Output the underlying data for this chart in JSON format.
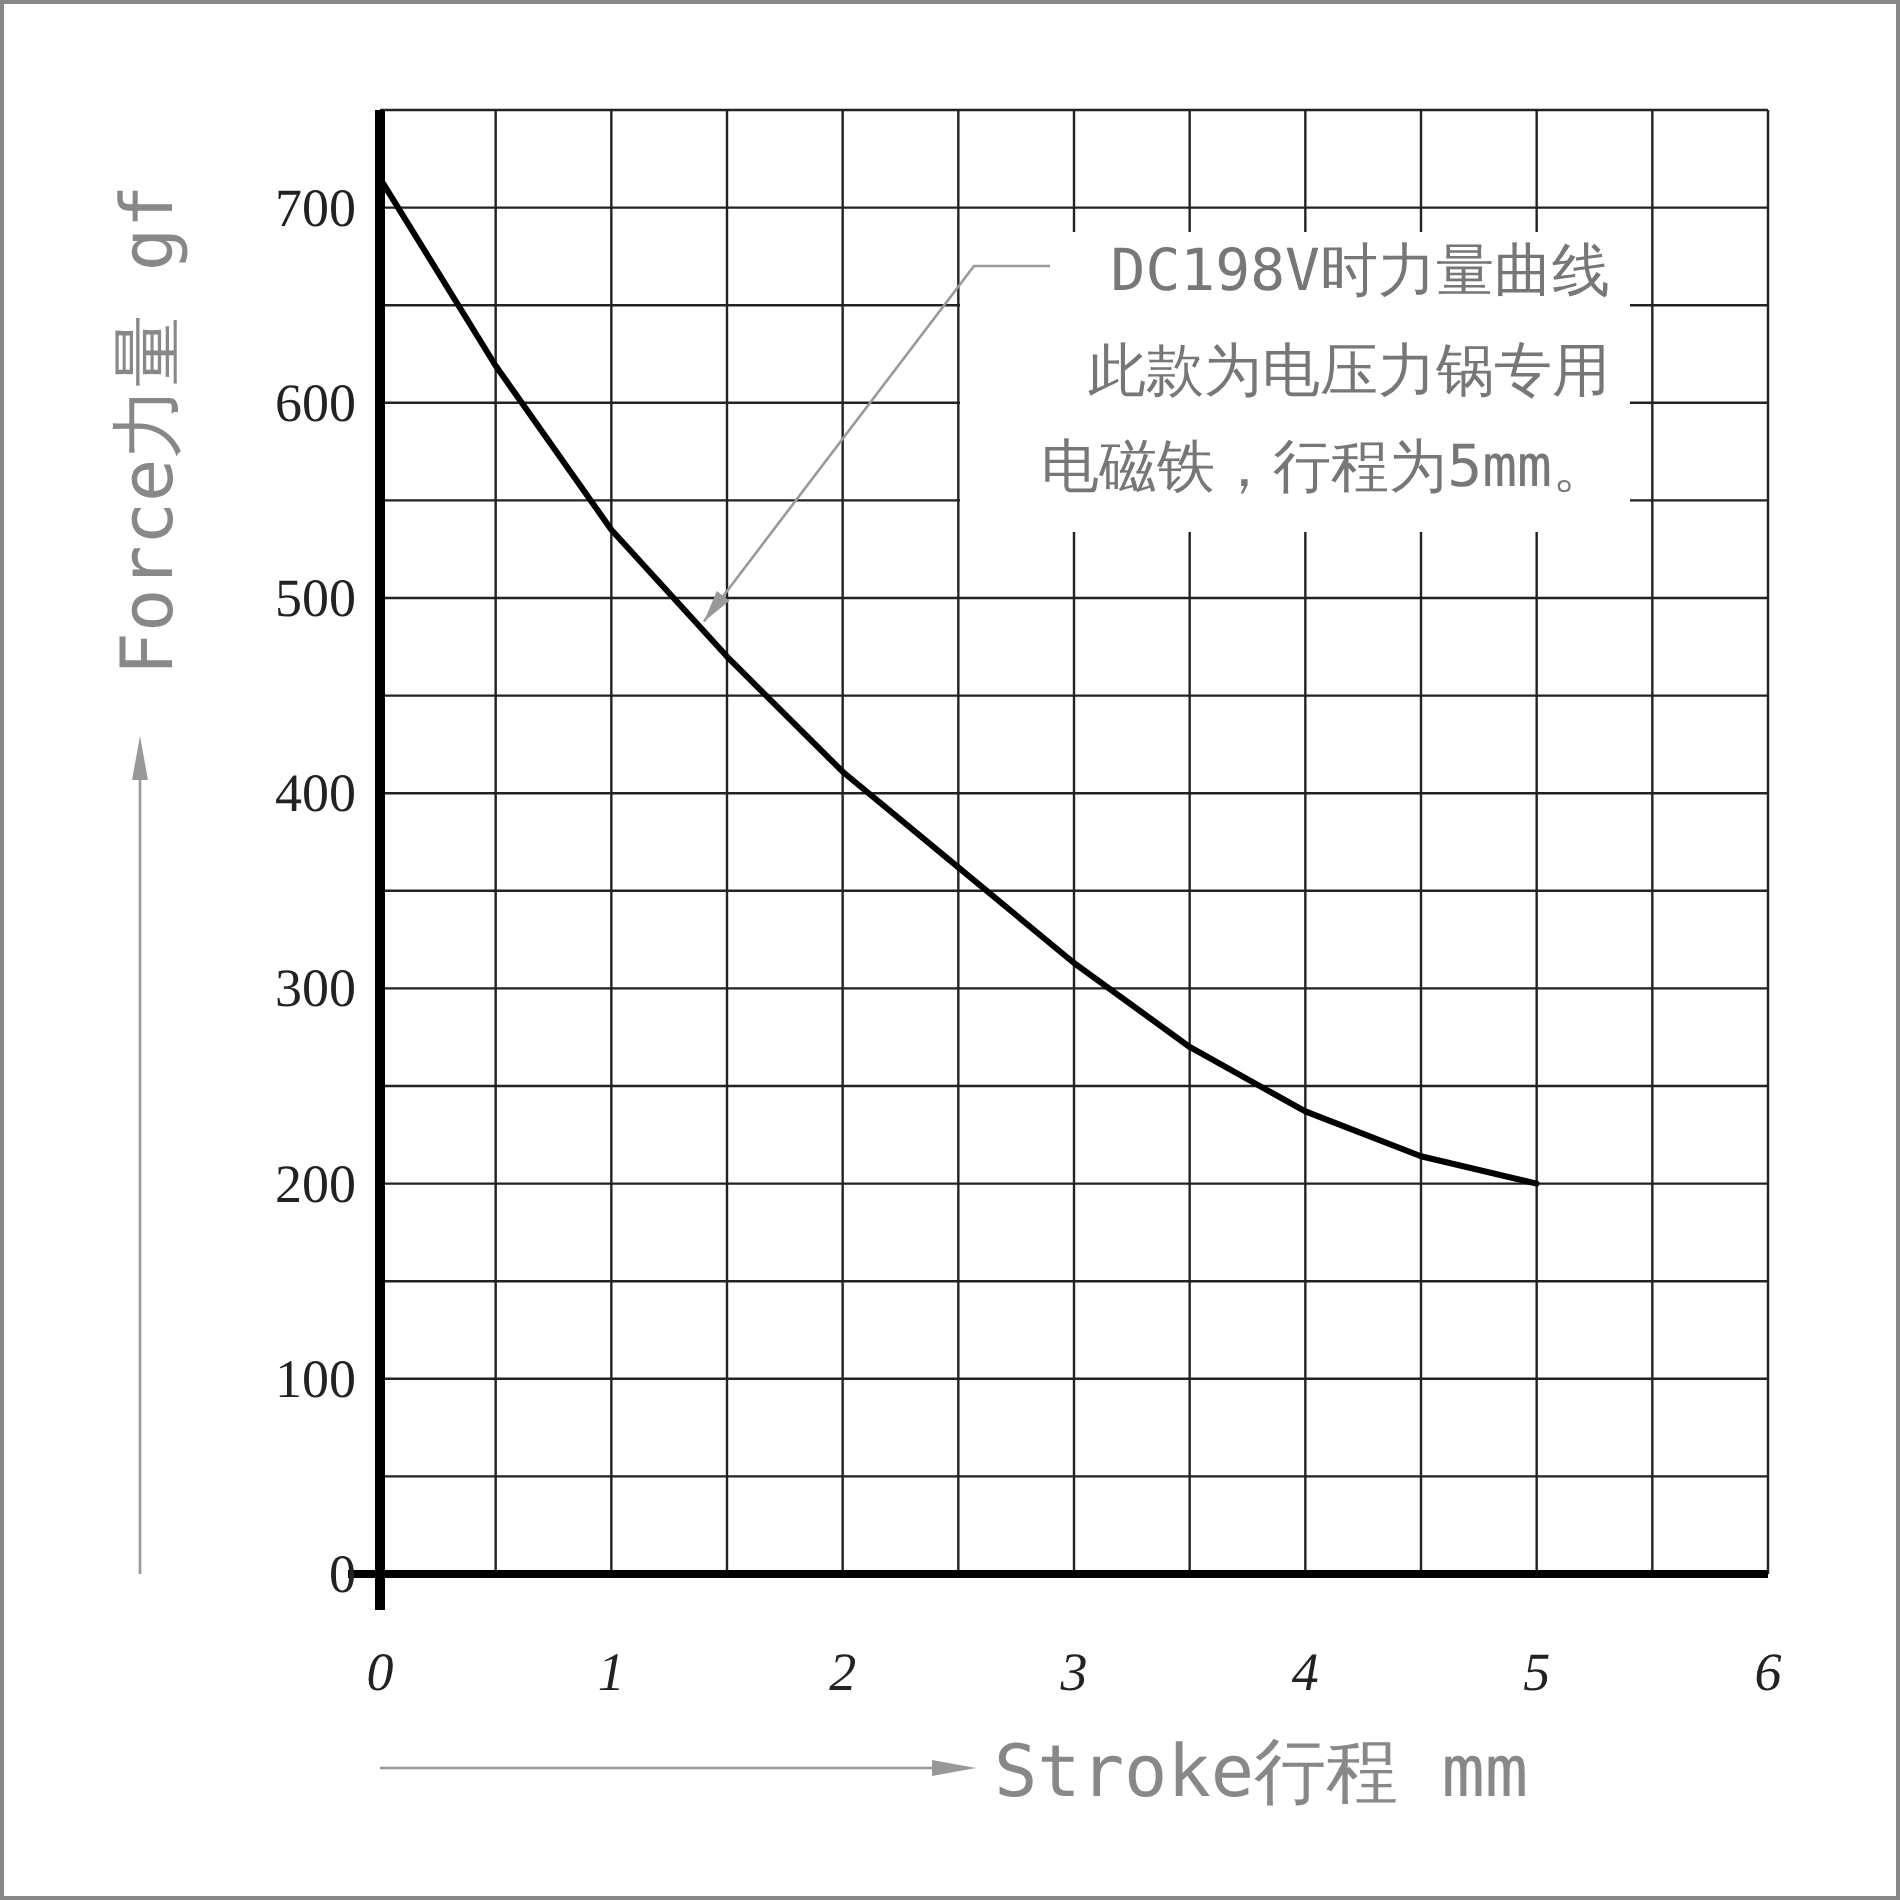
{
  "chart_data": {
    "type": "line",
    "xlabel": "Stroke行程 mm",
    "ylabel": "Force力量 gf",
    "x": [
      0,
      0.5,
      1,
      1.5,
      2,
      2.5,
      3,
      3.5,
      4,
      4.5,
      5
    ],
    "series": [
      {
        "color": "#000000",
        "values": [
          715,
          619,
          535,
          470,
          411,
          362,
          313,
          270,
          237,
          214,
          200
        ]
      }
    ],
    "xlim": [
      0,
      6
    ],
    "ylim": [
      0,
      750
    ],
    "xticks": [
      0,
      {
        "value": 0.5,
        "label": null
      },
      1,
      {
        "value": 1.5,
        "label": null
      },
      2,
      {
        "value": 2.5,
        "label": null
      },
      3,
      {
        "value": 3.5,
        "label": null
      },
      4,
      {
        "value": 4.5,
        "label": null
      },
      5,
      {
        "value": 5.5,
        "label": null
      },
      6
    ],
    "yticks": [
      0,
      {
        "value": 50,
        "label": null
      },
      100,
      {
        "value": 150,
        "label": null
      },
      200,
      {
        "value": 250,
        "label": null
      },
      300,
      {
        "value": 350,
        "label": null
      },
      400,
      {
        "value": 450,
        "label": null
      },
      500,
      {
        "value": 550,
        "label": null
      },
      600,
      {
        "value": 650,
        "label": null
      },
      700,
      {
        "value": 750,
        "label": null
      }
    ],
    "grid": true,
    "annotations": [
      {
        "text": "DC198V时力量曲线",
        "x": 1.4,
        "y": 488
      },
      "此款为电压力锅专用电磁铁，行程为5mm。"
    ]
  }
}
